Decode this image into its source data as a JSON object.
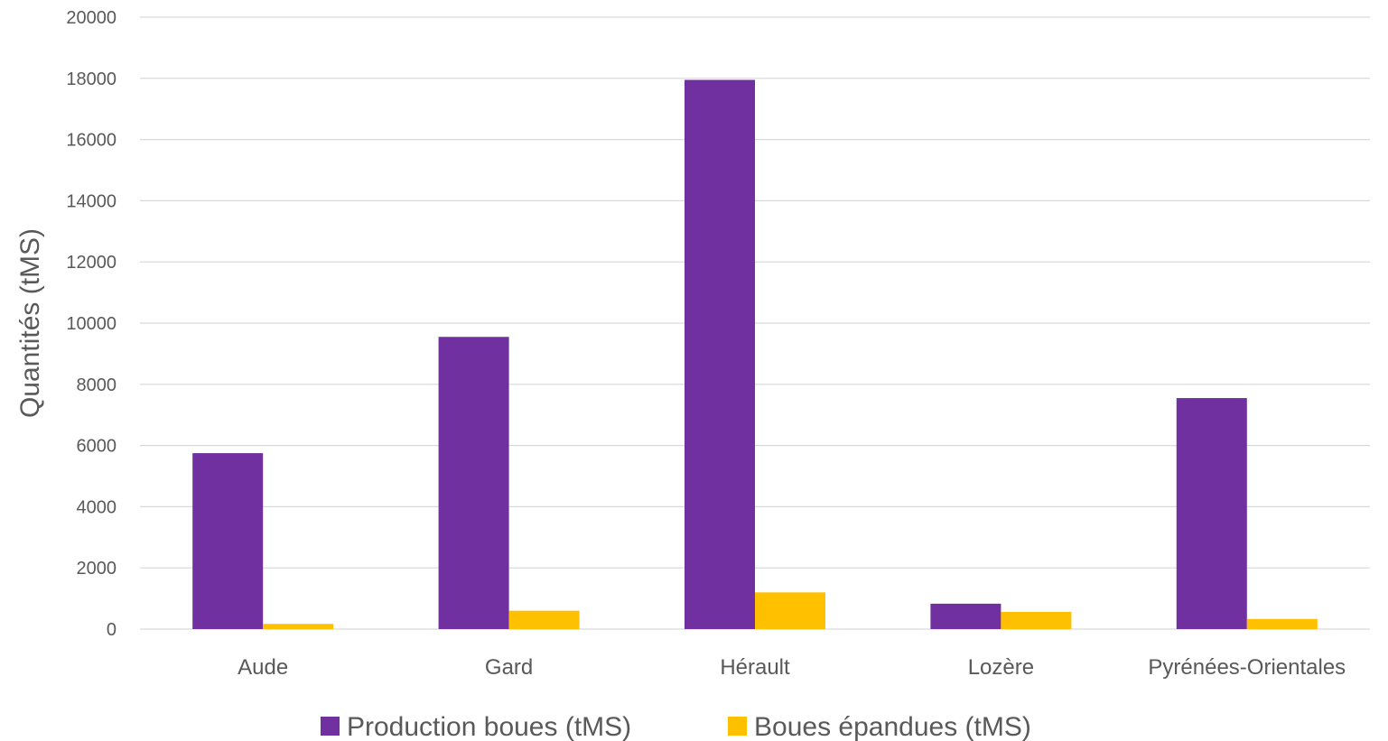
{
  "chart_data": {
    "type": "bar",
    "title": "",
    "xlabel": "",
    "ylabel": "Quantités (tMS)",
    "ylim": [
      0,
      20000
    ],
    "yticks": [
      0,
      2000,
      4000,
      6000,
      8000,
      10000,
      12000,
      14000,
      16000,
      18000,
      20000
    ],
    "categories": [
      "Aude",
      "Gard",
      "Hérault",
      "Lozère",
      "Pyrénées-Orientales"
    ],
    "series": [
      {
        "name": "Production boues (tMS)",
        "color": "#7030a0",
        "values": [
          5750,
          9550,
          17950,
          830,
          7550
        ]
      },
      {
        "name": "Boues épandues (tMS)",
        "color": "#ffc000",
        "values": [
          170,
          600,
          1200,
          560,
          330
        ]
      }
    ],
    "grid": true,
    "legend_position": "bottom"
  }
}
